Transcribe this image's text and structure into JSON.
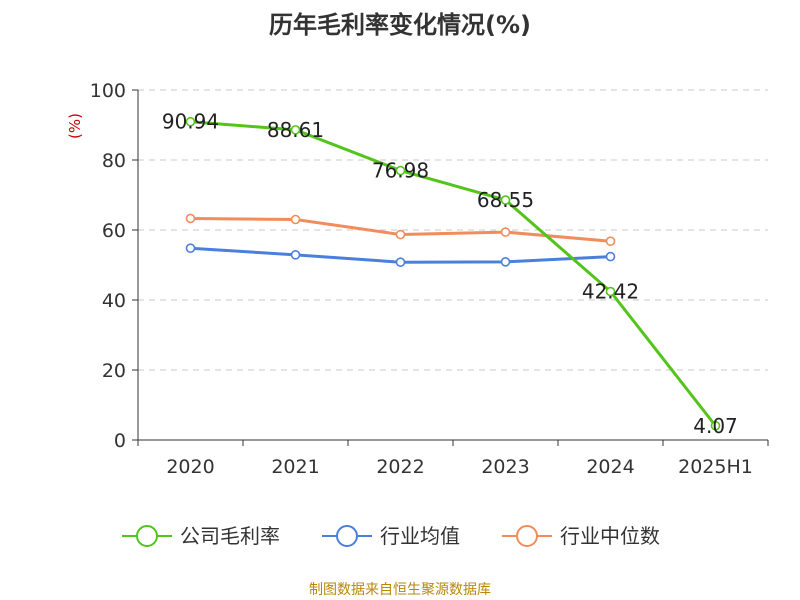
{
  "chart_data": {
    "type": "line",
    "title": "历年毛利率变化情况(%)",
    "ylabel": "(%)",
    "xlabel": "",
    "categories": [
      "2020",
      "2021",
      "2022",
      "2023",
      "2024",
      "2025H1"
    ],
    "ylim": [
      0,
      100
    ],
    "yticks": [
      0,
      20,
      40,
      60,
      80,
      100
    ],
    "grid": true,
    "legend_position": "bottom",
    "series": [
      {
        "name": "公司毛利率",
        "color": "#52c41a",
        "values": [
          90.94,
          88.61,
          76.98,
          68.55,
          42.42,
          4.07
        ],
        "labels": [
          "90.94",
          "88.61",
          "76.98",
          "68.55",
          "42.42",
          "4.07"
        ]
      },
      {
        "name": "行业均值",
        "color": "#4a7fdb",
        "values": [
          54.8,
          52.9,
          50.8,
          50.9,
          52.4,
          null
        ]
      },
      {
        "name": "行业中位数",
        "color": "#f28c5a",
        "values": [
          63.3,
          63.0,
          58.7,
          59.4,
          56.8,
          null
        ]
      }
    ]
  },
  "source": "制图数据来自恒生聚源数据库"
}
